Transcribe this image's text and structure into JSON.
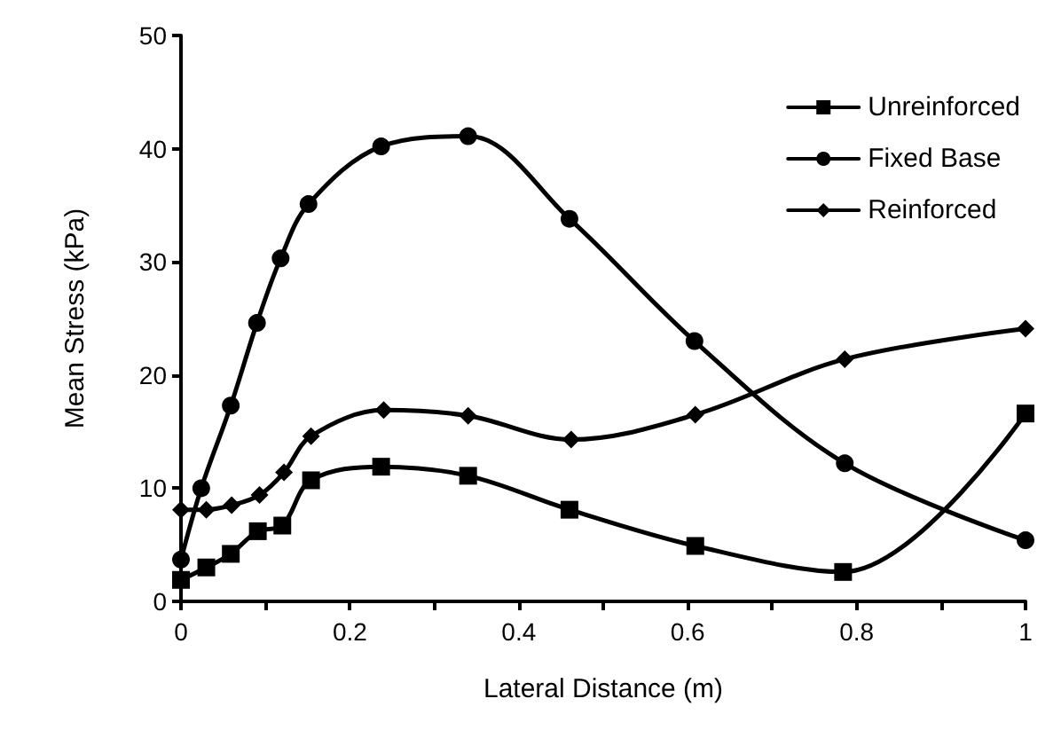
{
  "chart_data": {
    "type": "line",
    "xlabel": "Lateral Distance (m)",
    "ylabel": "Mean Stress (kPa)",
    "xlim": [
      0,
      1
    ],
    "ylim": [
      0,
      50
    ],
    "xticks": [
      0,
      {
        "value": 0.1,
        "label": null
      },
      0.2,
      {
        "value": 0.3,
        "label": null
      },
      0.4,
      {
        "value": 0.5,
        "label": null
      },
      0.6,
      {
        "value": 0.7,
        "label": null
      },
      0.8,
      {
        "value": 0.9,
        "label": null
      },
      1
    ],
    "yticks": [
      0,
      10,
      20,
      30,
      40,
      50
    ],
    "grid": false,
    "legend": "top right",
    "line_style": "solid",
    "series": [
      {
        "name": "Unreinforced",
        "color": "#000000",
        "marker": "square",
        "x": [
          0,
          0.03,
          0.059,
          0.091,
          0.12,
          0.154,
          0.237,
          0.34,
          0.46,
          0.609,
          0.784,
          1.0
        ],
        "values": [
          1.9,
          3.0,
          4.2,
          6.2,
          6.7,
          10.7,
          11.9,
          11.1,
          8.1,
          4.9,
          2.6,
          16.6
        ]
      },
      {
        "name": "Fixed Base",
        "color": "#000000",
        "marker": "circle",
        "x": [
          0,
          0.024,
          0.059,
          0.09,
          0.118,
          0.151,
          0.237,
          0.34,
          0.46,
          0.608,
          0.786,
          1.0
        ],
        "values": [
          3.7,
          10.0,
          17.3,
          24.6,
          30.3,
          35.1,
          40.2,
          41.1,
          33.8,
          23.0,
          12.2,
          5.4
        ]
      },
      {
        "name": "Reinforced",
        "color": "#000000",
        "marker": "diamond",
        "x": [
          0,
          0.03,
          0.06,
          0.093,
          0.122,
          0.154,
          0.24,
          0.34,
          0.462,
          0.609,
          0.786,
          1.0
        ],
        "values": [
          8.1,
          8.1,
          8.5,
          9.4,
          11.4,
          14.6,
          16.9,
          16.4,
          14.3,
          16.5,
          21.4,
          24.1
        ]
      }
    ]
  }
}
